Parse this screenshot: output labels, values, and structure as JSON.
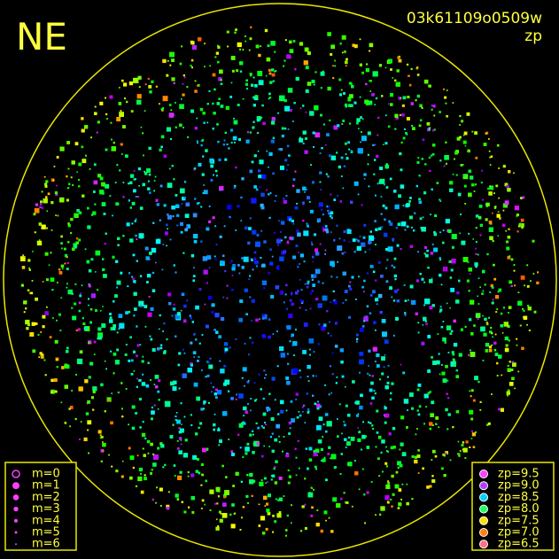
{
  "header": {
    "direction": "NE",
    "frame_id": "03k61109o0509w",
    "color_key": "zp"
  },
  "magnitude_legend": [
    "m=0",
    "m=1",
    "m=2",
    "m=3",
    "m=4",
    "m=5",
    "m=6"
  ],
  "zp_legend": [
    {
      "label": "zp=9.5",
      "color": "#ff40ff"
    },
    {
      "label": "zp=9.0",
      "color": "#b040ff"
    },
    {
      "label": "zp=8.5",
      "color": "#00d0ff"
    },
    {
      "label": "zp=8.0",
      "color": "#20ff60"
    },
    {
      "label": "zp=7.5",
      "color": "#ffe000"
    },
    {
      "label": "zp=7.0",
      "color": "#ff8010"
    },
    {
      "label": "zp=6.5",
      "color": "#ff7080"
    }
  ]
}
